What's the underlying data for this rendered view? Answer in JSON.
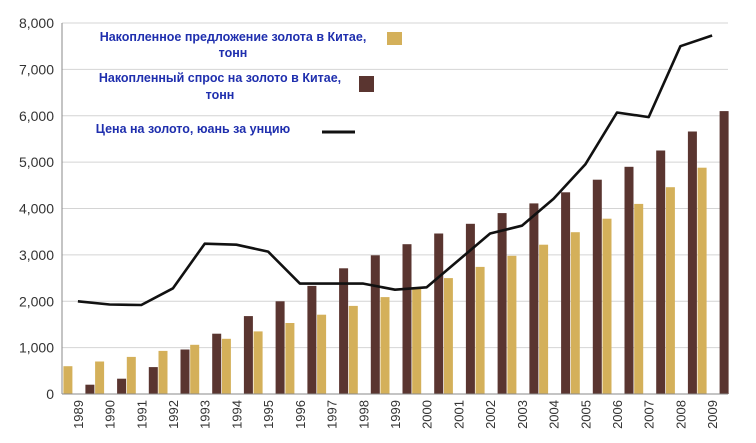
{
  "chart_data": {
    "type": "bar",
    "categories": [
      "1989",
      "1990",
      "1991",
      "1992",
      "1993",
      "1994",
      "1995",
      "1996",
      "1997",
      "1998",
      "1999",
      "2000",
      "2001",
      "2002",
      "2003",
      "2004",
      "2005",
      "2006",
      "2007",
      "2008",
      "2009"
    ],
    "series": [
      {
        "name": "Накопленное предложение золота в Китае, тонн",
        "kind": "bar",
        "color": "#d4b05a",
        "values": [
          600,
          700,
          800,
          930,
          1060,
          1190,
          1350,
          1530,
          1710,
          1900,
          2090,
          2290,
          2500,
          2740,
          2980,
          3220,
          3490,
          3780,
          4100,
          4460,
          4880
        ]
      },
      {
        "name": "Накопленный спрос на золото в Китае, тонн",
        "kind": "bar",
        "color": "#5a3530",
        "values": [
          200,
          330,
          580,
          960,
          1300,
          1680,
          2000,
          2330,
          2710,
          2990,
          3230,
          3460,
          3670,
          3900,
          4110,
          4350,
          4620,
          4900,
          5250,
          5660,
          6100
        ]
      },
      {
        "name": "Цена на золото, юань за унцию",
        "kind": "line",
        "color": "#111111",
        "values": [
          2000,
          1930,
          1920,
          2280,
          3240,
          3220,
          3070,
          2380,
          2380,
          2380,
          2250,
          2300,
          2880,
          3460,
          3630,
          4210,
          4950,
          6070,
          5970,
          7500,
          7730
        ]
      }
    ],
    "y_ticks": [
      "0",
      "1,000",
      "2,000",
      "3,000",
      "4,000",
      "5,000",
      "6,000",
      "7,000",
      "8,000"
    ],
    "ylim": [
      0,
      8000
    ],
    "grid": true,
    "legend": {
      "placement": "top-left",
      "entries": [
        {
          "lines": [
            "Накопленное предложение золота в Китае,",
            "тонн"
          ]
        },
        {
          "lines": [
            "Накопленный спрос на золото в Китае,",
            "тонн"
          ]
        },
        {
          "lines": [
            "Цена на золото, юань за унцию"
          ]
        }
      ]
    }
  }
}
